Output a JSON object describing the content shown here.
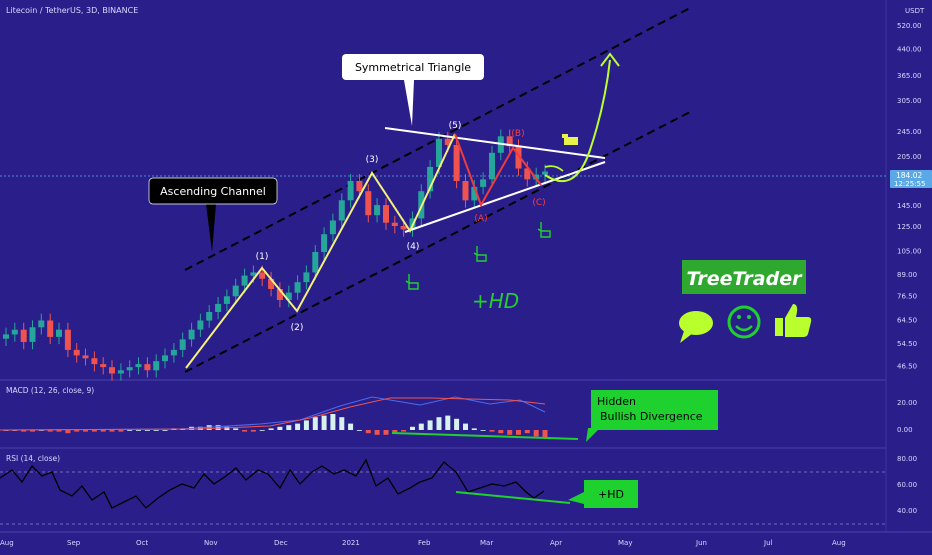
{
  "header": {
    "symbol_title": "Litecoin / TetherUS, 3D, BINANCE"
  },
  "price_axis": {
    "unit": "USDT",
    "ticks": [
      "520.00",
      "440.00",
      "365.00",
      "305.00",
      "245.00",
      "205.00",
      "145.00",
      "125.00",
      "105.00",
      "89.00",
      "76.50",
      "64.50",
      "54.50",
      "46.50"
    ],
    "last_price": "184.02",
    "countdown": "12:25:55"
  },
  "time_axis": {
    "ticks": [
      "Aug",
      "Sep",
      "Oct",
      "Nov",
      "Dec",
      "2021",
      "Feb",
      "Mar",
      "Apr",
      "May",
      "Jun",
      "Jul",
      "Aug"
    ]
  },
  "macd": {
    "title": "MACD (12, 26, close, 9)",
    "ticks": [
      "20.00",
      "0.00"
    ]
  },
  "rsi": {
    "title": "RSI (14, close)",
    "ticks": [
      "80.00",
      "60.00",
      "40.00"
    ]
  },
  "annotations": {
    "symmetrical_triangle": "Symmetrical Triangle",
    "ascending_channel": "Ascending Channel",
    "hidden_bullish_divergence_line1": "Hidden",
    "hidden_bullish_divergence_line2": "Bullish Divergence",
    "hd_main": "+HD",
    "hd_rsi": "+HD",
    "brand": "TreeTrader",
    "wave_labels": [
      "(1)",
      "(2)",
      "(3)",
      "(4)",
      "(5)",
      "(A)",
      "(B)",
      "(C)"
    ]
  },
  "colors": {
    "background": "#2a1f8a",
    "up_candle": "#26a69a",
    "down_candle": "#ef5350",
    "wave_line": "#f5f07a",
    "triangle": "#ffffff",
    "divergence": "#1fd12f",
    "brand_green": "#2ea82e",
    "macd_line": "#4a6cf0",
    "signal_line": "#ef5350"
  },
  "chart_data": {
    "type": "candlestick",
    "title": "Litecoin / TetherUS, 3D, BINANCE",
    "y_scale": "log",
    "ylim": [
      42,
      620
    ],
    "x_range": [
      "Aug",
      "Aug"
    ],
    "current_price": 184.02,
    "candles_approx_close": [
      58,
      60,
      55,
      61,
      64,
      57,
      60,
      52,
      50,
      49,
      47,
      46,
      44,
      45,
      46,
      47,
      45,
      48,
      50,
      52,
      56,
      60,
      64,
      68,
      72,
      76,
      82,
      88,
      90,
      86,
      80,
      74,
      78,
      84,
      90,
      104,
      118,
      130,
      150,
      172,
      160,
      135,
      145,
      128,
      125,
      122,
      132,
      160,
      190,
      232,
      222,
      172,
      150,
      165,
      174,
      210,
      236,
      220,
      188,
      174,
      180,
      184
    ],
    "wave_points": [
      {
        "label": "(1)",
        "price": 95
      },
      {
        "label": "(2)",
        "price": 69
      },
      {
        "label": "(3)",
        "price": 184
      },
      {
        "label": "(4)",
        "price": 119
      },
      {
        "label": "(5)",
        "price": 240
      },
      {
        "label": "(A)",
        "price": 150
      },
      {
        "label": "(B)",
        "price": 230
      },
      {
        "label": "(C)",
        "price": 168
      }
    ],
    "projection_target": 440
  }
}
